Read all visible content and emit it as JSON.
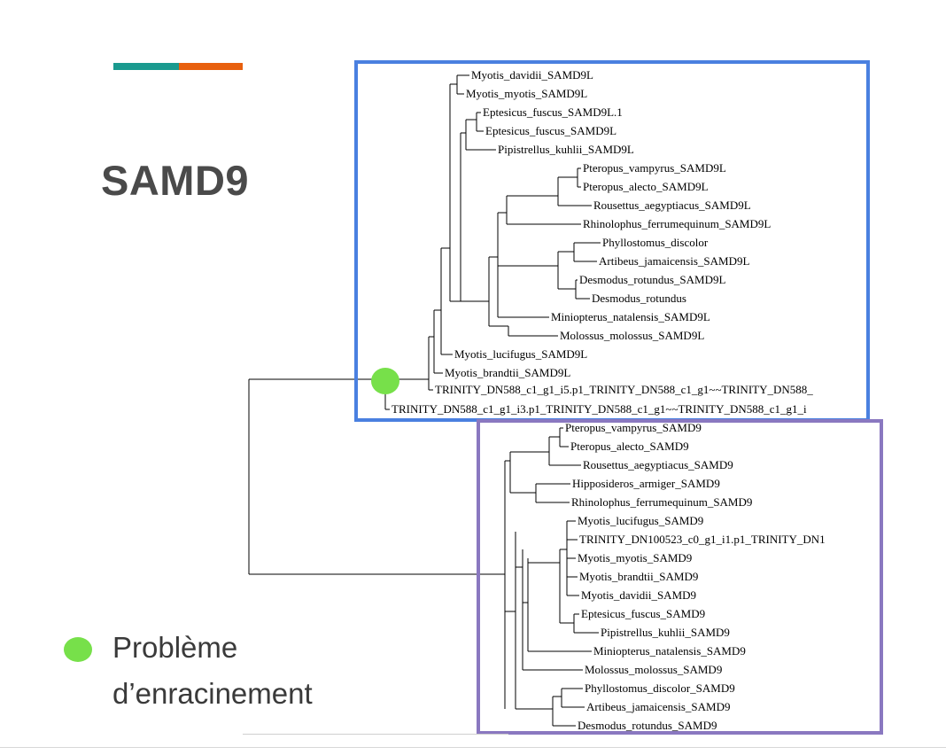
{
  "slide": {
    "title": "SAMD9",
    "accent_colors": {
      "teal": "#1a9a8f",
      "orange": "#e8600e"
    }
  },
  "legend": {
    "dot_color": "#77e04a",
    "line1": "Problème",
    "line2": "d’enracinement"
  },
  "tree": {
    "line_color": "#000000",
    "root_marker_color": "#77e04a",
    "samd9l_box_color": "#4a80e0",
    "samd9_box_color": "#8a78c0",
    "samd9l_leaves": [
      "Myotis_davidii_SAMD9L",
      "Myotis_myotis_SAMD9L",
      "Eptesicus_fuscus_SAMD9L.1",
      "Eptesicus_fuscus_SAMD9L",
      "Pipistrellus_kuhlii_SAMD9L",
      "Pteropus_vampyrus_SAMD9L",
      "Pteropus_alecto_SAMD9L",
      "Rousettus_aegyptiacus_SAMD9L",
      "Rhinolophus_ferrumequinum_SAMD9L",
      "Phyllostomus_discolor",
      "Artibeus_jamaicensis_SAMD9L",
      "Desmodus_rotundus_SAMD9L",
      "Desmodus_rotundus",
      "Miniopterus_natalensis_SAMD9L",
      "Molossus_molossus_SAMD9L",
      "Myotis_lucifugus_SAMD9L",
      "Myotis_brandtii_SAMD9L",
      "TRINITY_DN588_c1_g1_i5.p1_TRINITY_DN588_c1_g1~~TRINITY_DN588_",
      "TRINITY_DN588_c1_g1_i3.p1_TRINITY_DN588_c1_g1~~TRINITY_DN588_c1_g1_i"
    ],
    "samd9_leaves": [
      "Pteropus_vampyrus_SAMD9",
      "Pteropus_alecto_SAMD9",
      "Rousettus_aegyptiacus_SAMD9",
      "Hipposideros_armiger_SAMD9",
      "Rhinolophus_ferrumequinum_SAMD9",
      "Myotis_lucifugus_SAMD9",
      "TRINITY_DN100523_c0_g1_i1.p1_TRINITY_DN1",
      "Myotis_myotis_SAMD9",
      "Myotis_brandtii_SAMD9",
      "Myotis_davidii_SAMD9",
      "Eptesicus_fuscus_SAMD9",
      "Pipistrellus_kuhlii_SAMD9",
      "Miniopterus_natalensis_SAMD9",
      "Molossus_molossus_SAMD9",
      "Phyllostomus_discolor_SAMD9",
      "Artibeus_jamaicensis_SAMD9",
      "Desmodus_rotundus_SAMD9"
    ]
  }
}
